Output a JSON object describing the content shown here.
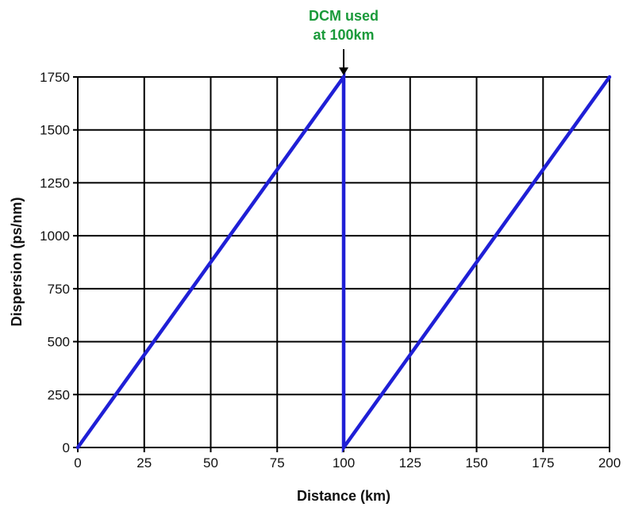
{
  "chart_data": {
    "type": "line",
    "xlabel": "Distance (km)",
    "ylabel": "Dispersion (ps/nm)",
    "xlim": [
      0,
      200
    ],
    "ylim": [
      0,
      1750
    ],
    "x_ticks": [
      0,
      25,
      50,
      75,
      100,
      125,
      150,
      175,
      200
    ],
    "y_ticks": [
      0,
      250,
      500,
      750,
      1000,
      1250,
      1500,
      1750
    ],
    "x_tick_labels": [
      "0",
      "25",
      "50",
      "75",
      "100",
      "125",
      "150",
      "175",
      "200"
    ],
    "y_tick_labels": [
      "0",
      "250",
      "500",
      "750",
      "1000",
      "1250",
      "1500",
      "1750"
    ],
    "grid": true,
    "series": [
      {
        "color": "#1f1fd6",
        "x": [
          0,
          100,
          100,
          200
        ],
        "y": [
          0,
          1750,
          0,
          1750
        ]
      }
    ],
    "annotations": [
      {
        "lines": [
          "DCM used",
          "at 100km"
        ],
        "x": 100,
        "y": 1750,
        "color": "#1a9a3a",
        "arrow": true
      }
    ]
  }
}
